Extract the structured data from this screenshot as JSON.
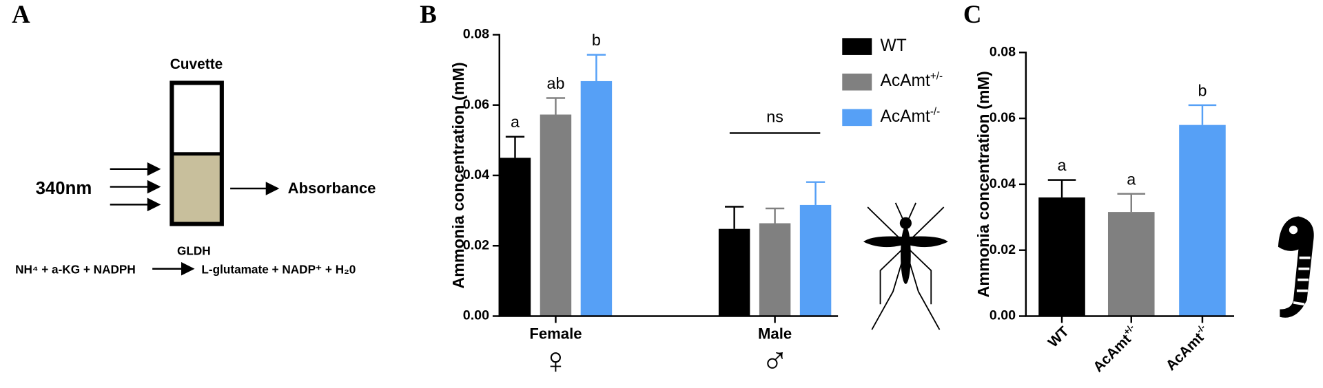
{
  "panel_labels": [
    "A",
    "B",
    "C"
  ],
  "diagram": {
    "cuvette": "Cuvette",
    "wavelength": "340nm",
    "output": "Absorbance",
    "enzyme": "GLDH",
    "reactants": "NH⁴ + a-KG + NADPH",
    "products": "L-glutamate + NADP⁺ + H₂0"
  },
  "chart_data": [
    {
      "type": "bar",
      "ylabel": "Ammonia concentration (mM)",
      "categories": [
        "Female",
        "Male"
      ],
      "category_symbols": [
        "♀",
        "♂"
      ],
      "ylim": [
        0,
        0.08
      ],
      "yticks": [
        {
          "value": 0,
          "label": "0.00"
        },
        {
          "value": 0.02,
          "label": "0.02"
        },
        {
          "value": 0.04,
          "label": "0.04"
        },
        {
          "value": 0.06,
          "label": "0.06"
        },
        {
          "value": 0.08,
          "label": "0.08"
        }
      ],
      "series": [
        {
          "name": "WT",
          "color": "#000000",
          "values": [
            0.045,
            0.0248
          ],
          "errors": [
            0.006,
            0.0063
          ],
          "letters": [
            "a",
            null
          ]
        },
        {
          "name": "AcAmt+/-",
          "color": "#808080",
          "values": [
            0.0573,
            0.0264
          ],
          "errors": [
            0.0047,
            0.0042
          ],
          "letters": [
            "ab",
            null
          ]
        },
        {
          "name": "AcAmt-/-",
          "color": "#56a0f6",
          "values": [
            0.0668,
            0.0316
          ],
          "errors": [
            0.0075,
            0.0065
          ],
          "letters": [
            "b",
            null
          ]
        }
      ],
      "group_annotations": [
        null,
        "ns"
      ],
      "legend": "upper right"
    },
    {
      "type": "bar",
      "ylabel": "Ammonia concentration (mM)",
      "categories": [
        "WT",
        "AcAmt+/-",
        "AcAmt-/-"
      ],
      "values": [
        0.036,
        0.0316,
        0.058
      ],
      "errors": [
        0.0053,
        0.0055,
        0.006
      ],
      "colors": [
        "#000000",
        "#808080",
        "#56a0f6"
      ],
      "letters": [
        "a",
        "a",
        "b"
      ],
      "ylim": [
        0,
        0.08
      ],
      "yticks": [
        {
          "value": 0,
          "label": "0.00"
        },
        {
          "value": 0.02,
          "label": "0.02"
        },
        {
          "value": 0.04,
          "label": "0.04"
        },
        {
          "value": 0.06,
          "label": "0.06"
        },
        {
          "value": 0.08,
          "label": "0.08"
        }
      ]
    }
  ]
}
